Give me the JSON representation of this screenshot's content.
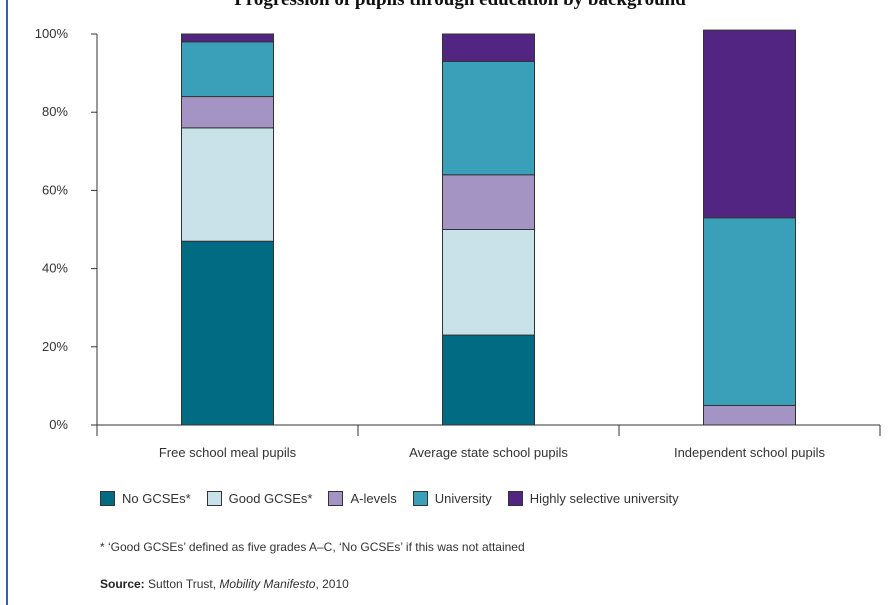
{
  "chart_data": {
    "type": "bar",
    "stacked": true,
    "title": "Progression of pupils through education by background",
    "categories": [
      "Free school meal pupils",
      "Average state school pupils",
      "Independent school pupils"
    ],
    "series": [
      {
        "name": "No GCSEs*",
        "values": [
          47,
          23,
          0
        ],
        "color": "#006b82"
      },
      {
        "name": "Good GCSEs*",
        "values": [
          29,
          27,
          0
        ],
        "color": "#c9e2ea"
      },
      {
        "name": "A-levels",
        "values": [
          8,
          14,
          5
        ],
        "color": "#a494c4"
      },
      {
        "name": "University",
        "values": [
          14,
          29,
          48
        ],
        "color": "#3a9fb8"
      },
      {
        "name": "Highly selective university",
        "values": [
          2,
          7,
          48
        ],
        "color": "#522582"
      }
    ],
    "y_ticks": [
      "0%",
      "20%",
      "40%",
      "60%",
      "80%",
      "100%"
    ],
    "ylim": [
      0,
      100
    ],
    "grid": false,
    "legend_position": "bottom"
  },
  "footnote": "* ‘Good GCSEs’ defined as five grades A–C, ‘No GCSEs’ if this was not attained",
  "source": {
    "label": "Source:",
    "publisher": "Sutton Trust,",
    "title": "Mobility Manifesto",
    "year": ", 2010"
  }
}
